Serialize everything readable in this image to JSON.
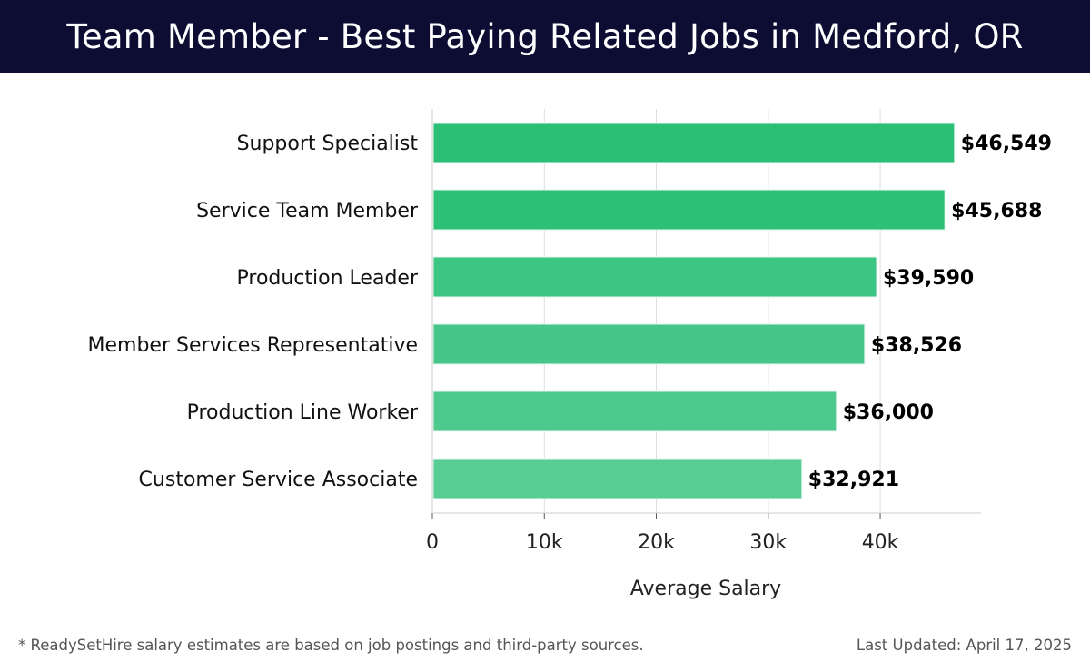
{
  "header": {
    "title": "Team Member - Best Paying Related Jobs in Medford, OR"
  },
  "chart_data": {
    "type": "bar",
    "orientation": "horizontal",
    "categories": [
      "Support Specialist",
      "Service Team Member",
      "Production Leader",
      "Member Services Representative",
      "Production Line Worker",
      "Customer Service Associate"
    ],
    "values": [
      46549,
      45688,
      39590,
      38526,
      36000,
      32921
    ],
    "value_labels": [
      "$46,549",
      "$45,688",
      "$39,590",
      "$38,526",
      "$36,000",
      "$32,921"
    ],
    "bar_colors": [
      "#2bbf76",
      "#2dc178",
      "#3cc583",
      "#46c789",
      "#4ec98e",
      "#58cc95"
    ],
    "xlabel": "Average Salary",
    "ylabel": "",
    "xlim": [
      0,
      49000
    ],
    "xticks": [
      0,
      10000,
      20000,
      30000,
      40000
    ],
    "xtick_labels": [
      "0",
      "10k",
      "20k",
      "30k",
      "40k"
    ],
    "grid": "vertical"
  },
  "footer": {
    "note": "* ReadySetHire salary estimates are based on job postings and third-party sources.",
    "updated": "Last Updated: April 17, 2025"
  }
}
